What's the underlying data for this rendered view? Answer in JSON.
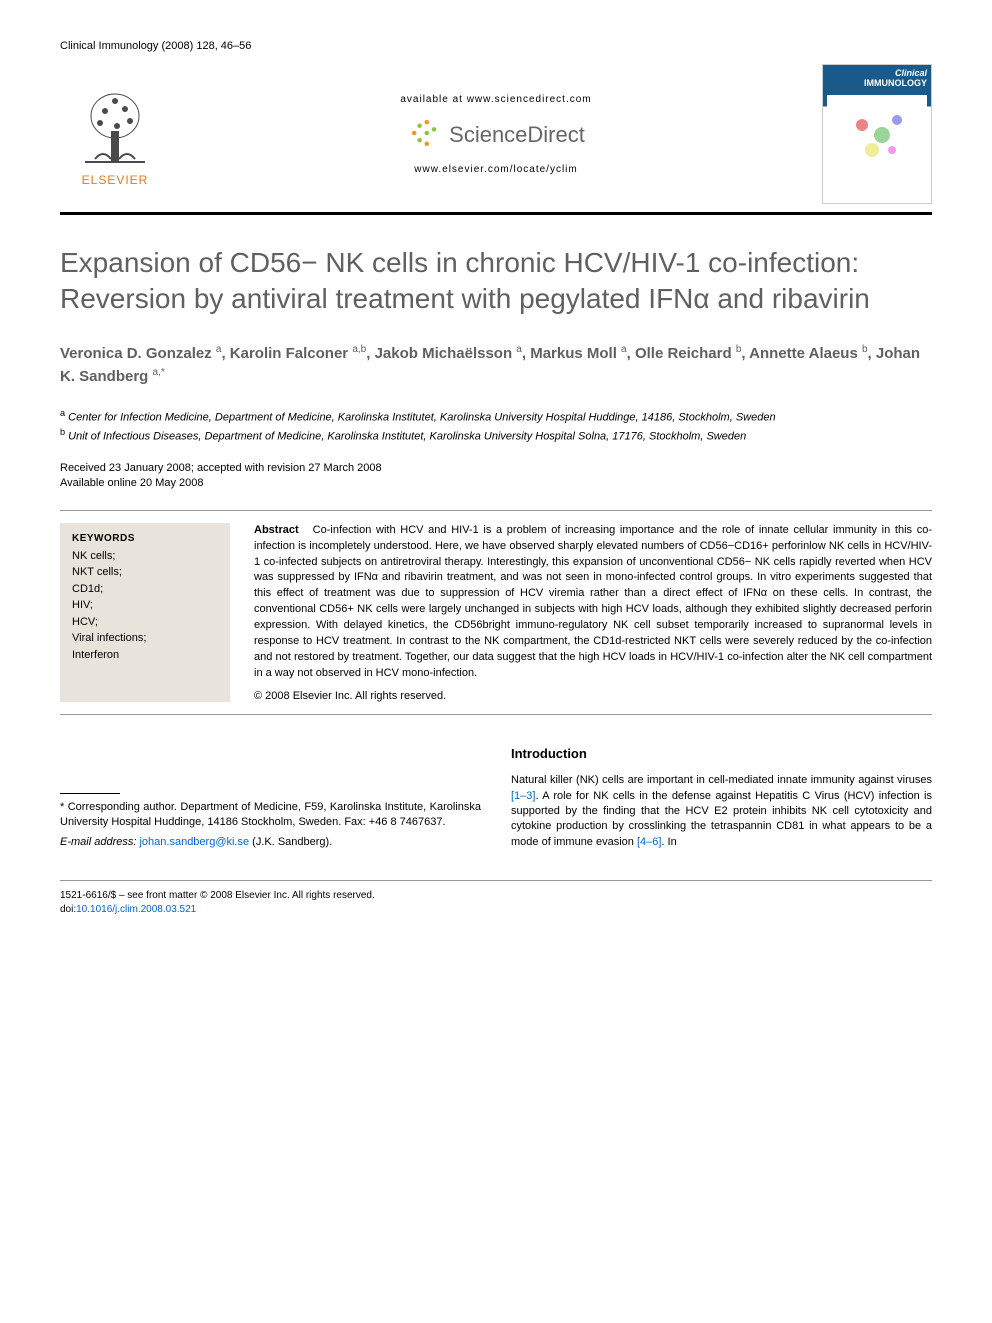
{
  "header": {
    "journal_citation": "Clinical Immunology (2008) 128, 46–56"
  },
  "banner": {
    "elsevier_label": "ELSEVIER",
    "available_text": "available at www.sciencedirect.com",
    "sciencedirect_text": "ScienceDirect",
    "locate_text": "www.elsevier.com/locate/yclim",
    "cover_title_line1": "Clinical",
    "cover_title_line2": "IMMUNOLOGY",
    "elsevier_tree_color": "#4a4a4a",
    "elsevier_text_color": "#e67817",
    "sd_dot_colors": [
      "#f7941d",
      "#8cc63f",
      "#8cc63f",
      "#f7941d",
      "#8cc63f",
      "#f7941d",
      "#8cc63f"
    ],
    "sd_text_color": "#666666",
    "cover_bg_top": "#1a5a8a"
  },
  "article": {
    "title": "Expansion of CD56− NK cells in chronic HCV/HIV-1 co-infection: Reversion by antiviral treatment with pegylated IFNα and ribavirin",
    "title_color": "#606060",
    "title_fontsize": 28,
    "authors_html": "Veronica D. Gonzalez <sup>a</sup>, Karolin Falconer <sup>a,b</sup>, Jakob Michaëlsson <sup>a</sup>, Markus Moll <sup>a</sup>, Olle Reichard <sup>b</sup>, Annette Alaeus <sup>b</sup>, Johan K. Sandberg <sup>a,*</sup>",
    "authors_color": "#606060",
    "affiliations": [
      {
        "sup": "a",
        "text": "Center for Infection Medicine, Department of Medicine, Karolinska Institutet, Karolinska University Hospital Huddinge, 14186, Stockholm, Sweden"
      },
      {
        "sup": "b",
        "text": "Unit of Infectious Diseases, Department of Medicine, Karolinska Institutet, Karolinska University Hospital Solna, 17176, Stockholm, Sweden"
      }
    ],
    "date_received": "Received 23 January 2008; accepted with revision 27 March 2008",
    "date_online": "Available online 20 May 2008"
  },
  "keywords": {
    "heading": "KEYWORDS",
    "items": [
      "NK cells;",
      "NKT cells;",
      "CD1d;",
      "HIV;",
      "HCV;",
      "Viral infections;",
      "Interferon"
    ],
    "box_bg": "#e8e4dc"
  },
  "abstract": {
    "label": "Abstract",
    "text": "Co-infection with HCV and HIV-1 is a problem of increasing importance and the role of innate cellular immunity in this co-infection is incompletely understood. Here, we have observed sharply elevated numbers of CD56−CD16+ perforinlow NK cells in HCV/HIV-1 co-infected subjects on antiretroviral therapy. Interestingly, this expansion of unconventional CD56− NK cells rapidly reverted when HCV was suppressed by IFNα and ribavirin treatment, and was not seen in mono-infected control groups. In vitro experiments suggested that this effect of treatment was due to suppression of HCV viremia rather than a direct effect of IFNα on these cells. In contrast, the conventional CD56+ NK cells were largely unchanged in subjects with high HCV loads, although they exhibited slightly decreased perforin expression. With delayed kinetics, the CD56bright immuno-regulatory NK cell subset temporarily increased to supranormal levels in response to HCV treatment. In contrast to the NK compartment, the CD1d-restricted NKT cells were severely reduced by the co-infection and not restored by treatment. Together, our data suggest that the high HCV loads in HCV/HIV-1 co-infection alter the NK cell compartment in a way not observed in HCV mono-infection.",
    "copyright": "© 2008 Elsevier Inc. All rights reserved."
  },
  "introduction": {
    "heading": "Introduction",
    "text_start": "Natural killer (NK) cells are important in cell-mediated innate immunity against viruses ",
    "ref1": "[1–3]",
    "text_mid": ". A role for NK cells in the defense against Hepatitis C Virus (HCV) infection is supported by the finding that the HCV E2 protein inhibits NK cell cytotoxicity and cytokine production by crosslinking the tetraspannin CD81 in what appears to be a mode of immune evasion ",
    "ref2": "[4–6]",
    "text_end": ". In"
  },
  "footnote": {
    "corresponding": "* Corresponding author. Department of Medicine, F59, Karolinska Institute, Karolinska University Hospital Huddinge, 14186 Stockholm, Sweden. Fax: +46 8 7467637.",
    "email_label": "E-mail address: ",
    "email": "johan.sandberg@ki.se",
    "email_name": " (J.K. Sandberg)."
  },
  "footer": {
    "copyright_line": "1521-6616/$ – see front matter © 2008 Elsevier Inc. All rights reserved.",
    "doi_label": "doi:",
    "doi": "10.1016/j.clim.2008.03.521"
  },
  "colors": {
    "link": "#0066cc",
    "text": "#000000",
    "rule": "#999999"
  }
}
